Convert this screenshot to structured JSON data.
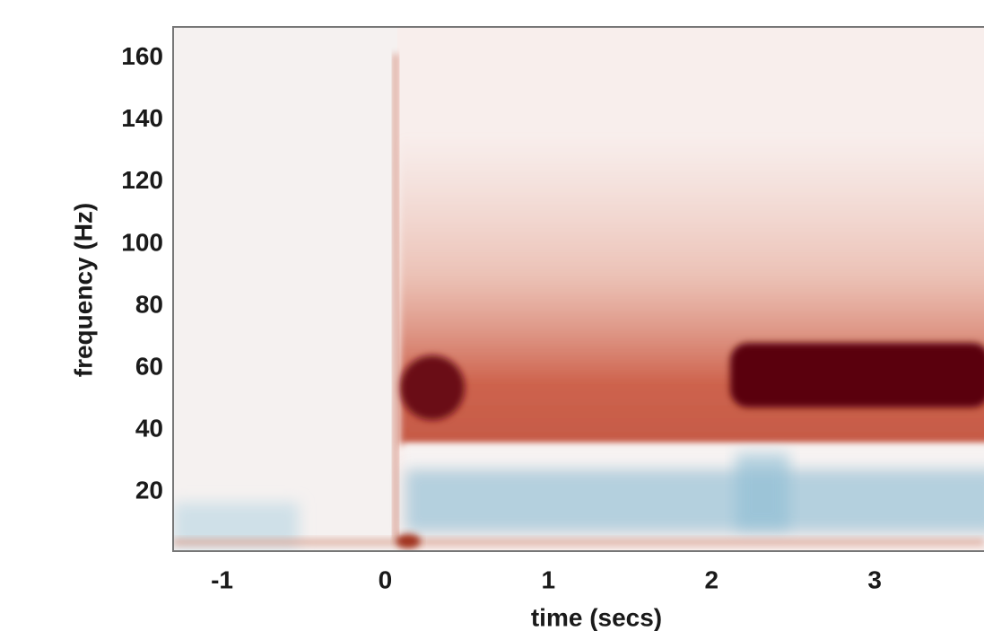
{
  "chart_data": {
    "type": "heatmap",
    "xlabel": "time (secs)",
    "ylabel": "frequency (Hz)",
    "xlim": [
      -1.3,
      3.67
    ],
    "xticks": [
      -1,
      0,
      1,
      2,
      3
    ],
    "ylim": [
      1,
      170
    ],
    "yticks": [
      20,
      40,
      60,
      80,
      100,
      120,
      140,
      160
    ]
  }
}
